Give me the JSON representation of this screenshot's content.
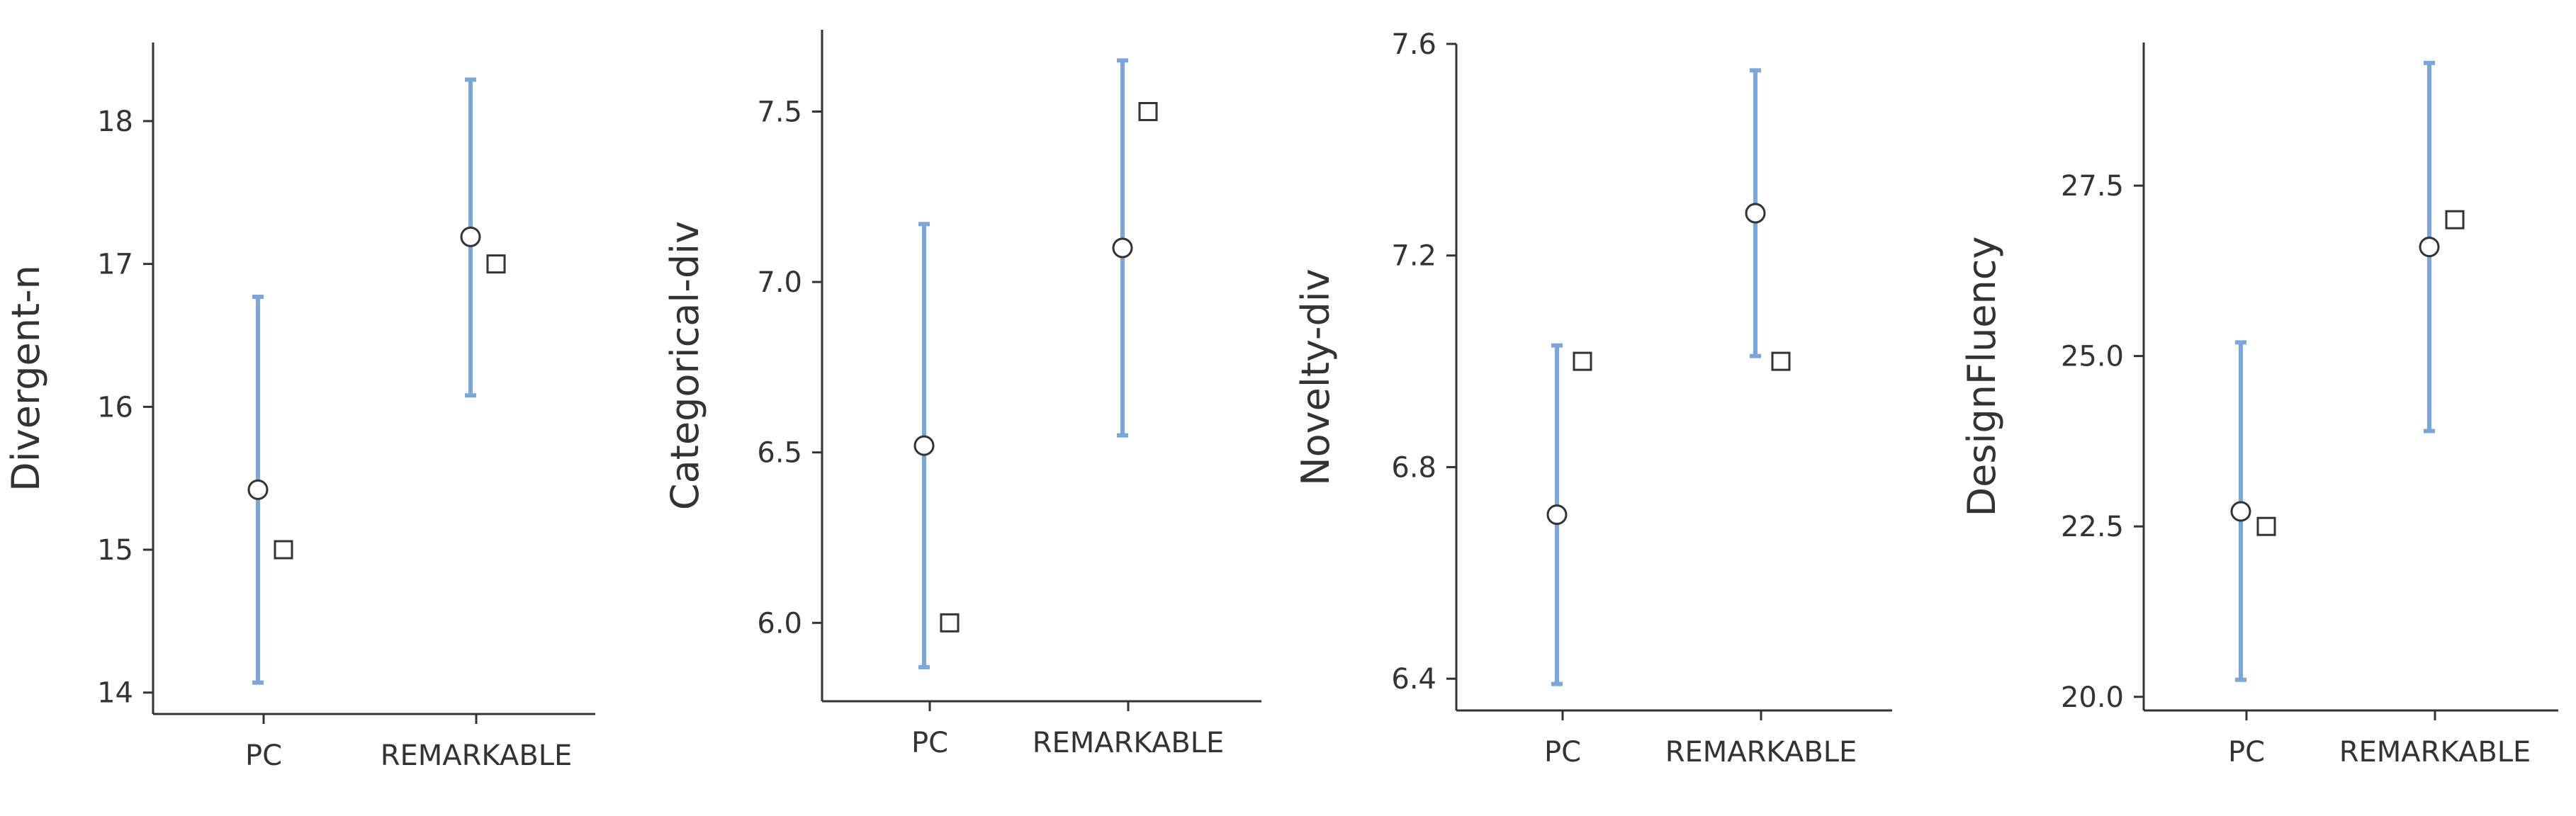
{
  "chart_data": [
    {
      "type": "scatter",
      "ylabel": "Divergent-n",
      "categories": [
        "PC",
        "REMARKABLE"
      ],
      "yticks": [
        14,
        15,
        16,
        17,
        18
      ],
      "ylim": [
        13.85,
        18.55
      ],
      "series": [
        {
          "marker": "circle",
          "values": [
            15.42,
            17.19
          ]
        },
        {
          "marker": "square",
          "values": [
            15.0,
            17.0
          ]
        }
      ],
      "error_bars": [
        {
          "category": "PC",
          "low": 14.07,
          "high": 16.77
        },
        {
          "category": "REMARKABLE",
          "low": 16.08,
          "high": 18.29
        }
      ]
    },
    {
      "type": "scatter",
      "ylabel": "Categorical-div",
      "categories": [
        "PC",
        "REMARKABLE"
      ],
      "yticks": [
        6.0,
        6.5,
        7.0,
        7.5
      ],
      "yticklabels": [
        "6.0",
        "6.5",
        "7.0",
        "7.5"
      ],
      "ylim": [
        5.77,
        7.74
      ],
      "series": [
        {
          "marker": "circle",
          "values": [
            6.52,
            7.1
          ]
        },
        {
          "marker": "square",
          "values": [
            6.0,
            7.5
          ]
        }
      ],
      "error_bars": [
        {
          "category": "PC",
          "low": 5.87,
          "high": 7.17
        },
        {
          "category": "REMARKABLE",
          "low": 6.55,
          "high": 7.65
        }
      ]
    },
    {
      "type": "scatter",
      "ylabel": "Novelty-div",
      "categories": [
        "PC",
        "REMARKABLE"
      ],
      "yticks": [
        6.4,
        6.8,
        7.2,
        7.6
      ],
      "yticklabels": [
        "6.4",
        "6.8",
        "7.2",
        "7.6"
      ],
      "ylim": [
        6.34,
        7.6
      ],
      "series": [
        {
          "marker": "circle",
          "values": [
            6.71,
            7.28
          ]
        },
        {
          "marker": "square",
          "values": [
            7.0,
            7.0
          ]
        }
      ],
      "error_bars": [
        {
          "category": "PC",
          "low": 6.39,
          "high": 7.03
        },
        {
          "category": "REMARKABLE",
          "low": 7.01,
          "high": 7.55
        }
      ]
    },
    {
      "type": "scatter",
      "ylabel": "DesignFluency",
      "categories": [
        "PC",
        "REMARKABLE"
      ],
      "yticks": [
        20.0,
        22.5,
        25.0,
        27.5
      ],
      "yticklabels": [
        "20.0",
        "22.5",
        "25.0",
        "27.5"
      ],
      "ylim": [
        19.8,
        29.6
      ],
      "series": [
        {
          "marker": "circle",
          "values": [
            22.72,
            26.6
          ]
        },
        {
          "marker": "square",
          "values": [
            22.5,
            27.0
          ]
        }
      ],
      "error_bars": [
        {
          "category": "PC",
          "low": 20.25,
          "high": 25.2
        },
        {
          "category": "REMARKABLE",
          "low": 23.9,
          "high": 29.3
        }
      ]
    }
  ],
  "colors": {
    "error_bar": "#7aa6e0",
    "axis": "#333333",
    "marker_fill": "#ffffff",
    "marker_stroke": "#333333"
  }
}
